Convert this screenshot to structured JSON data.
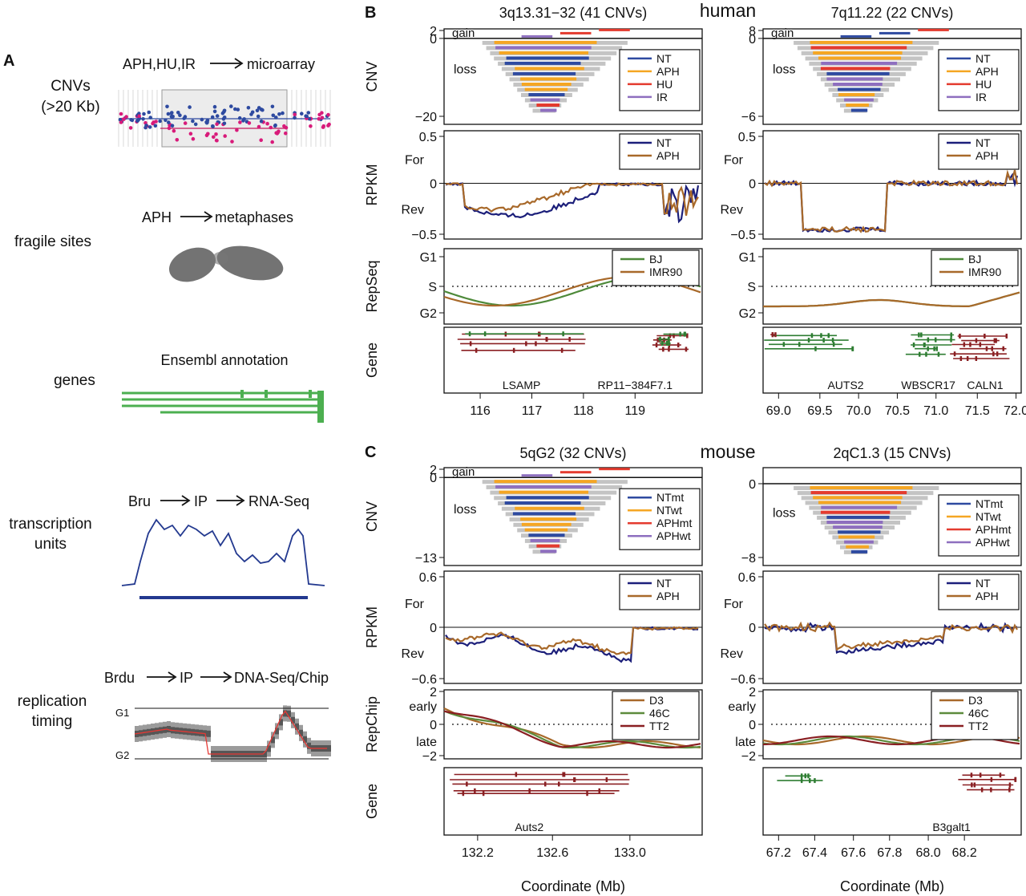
{
  "panel_a": {
    "letter": "A",
    "rows": [
      {
        "label_lines": [
          "CNVs",
          "(>20 Kb)"
        ],
        "method": [
          "APH,HU,IR",
          "microarray"
        ]
      },
      {
        "label_lines": [
          "fragile sites"
        ],
        "method": [
          "APH",
          "metaphases"
        ]
      },
      {
        "label_lines": [
          "genes"
        ],
        "method": [
          "Ensembl annotation"
        ]
      },
      {
        "label_lines": [
          "transcription",
          "units"
        ],
        "method": [
          "Bru",
          "IP",
          "RNA-Seq"
        ]
      },
      {
        "label_lines": [
          "replication",
          "timing"
        ],
        "method": [
          "Brdu",
          "IP",
          "DNA-Seq/Chip"
        ],
        "axis": [
          "G1",
          "G2"
        ]
      }
    ]
  },
  "panel_b": {
    "letter": "B",
    "organism": "human"
  },
  "panel_c": {
    "letter": "C",
    "organism": "mouse"
  },
  "xlabel": "Coordinate (Mb)",
  "colors": {
    "NT": "#2e4aa0",
    "APH": "#f5a623",
    "HU": "#e43b2f",
    "IR": "#8e6fbf",
    "NT_rpkm": "#1c1f7a",
    "APH_rpkm": "#a8692a",
    "BJ": "#4e8a3a",
    "IMR90": "#a8692a",
    "D3": "#a8692a",
    "46C": "#5d8b3c",
    "TT2": "#8a1f22",
    "gene_red": "#8a1f22",
    "gene_green": "#2e7d32",
    "cnv_gray": "#c4c4c4"
  },
  "chart_data": [
    {
      "type": "bar",
      "id": "B-left",
      "title": "3q13.31−32 (41 CNVs)",
      "x_ticks": [
        "116",
        "117",
        "118",
        "119"
      ],
      "cnv": {
        "ylabel": "CNV",
        "ticks": [
          "2",
          "0",
          "−20"
        ],
        "gain_label": "gain",
        "loss_label": "loss",
        "legend": [
          "NT",
          "APH",
          "HU",
          "IR"
        ]
      },
      "rpkm": {
        "ylabel": "RPKM",
        "ticks": [
          "0.5",
          "0",
          "−0.5"
        ],
        "strand_labels": [
          "For",
          "Rev"
        ],
        "legend": [
          "NT",
          "APH"
        ]
      },
      "rep": {
        "ylabel": "RepSeq",
        "ticks": [
          "G1",
          "S",
          "G2"
        ],
        "legend": [
          "BJ",
          "IMR90"
        ]
      },
      "gene": {
        "ylabel": "Gene",
        "names": [
          "LSAMP",
          "RP11−384F7.1"
        ]
      }
    },
    {
      "type": "bar",
      "id": "B-right",
      "title": "7q11.22 (22 CNVs)",
      "x_ticks": [
        "69.0",
        "69.5",
        "70.0",
        "70.5",
        "71.0",
        "71.5",
        "72.0"
      ],
      "cnv": {
        "ticks": [
          "8",
          "0",
          "−6"
        ],
        "gain_label": "gain",
        "loss_label": "loss",
        "legend": [
          "NT",
          "APH",
          "HU",
          "IR"
        ]
      },
      "rpkm": {
        "ticks": [
          "0.5",
          "0",
          "−0.5"
        ],
        "strand_labels": [
          "For",
          "Rev"
        ],
        "legend": [
          "NT",
          "APH"
        ]
      },
      "rep": {
        "ticks": [
          "G1",
          "S",
          "G2"
        ],
        "legend": [
          "BJ",
          "IMR90"
        ]
      },
      "gene": {
        "names": [
          "AUTS2",
          "WBSCR17",
          "CALN1"
        ]
      }
    },
    {
      "type": "bar",
      "id": "C-left",
      "title": "5qG2 (32 CNVs)",
      "x_ticks": [
        "132.2",
        "132.6",
        "133.0"
      ],
      "cnv": {
        "ylabel": "CNV",
        "ticks": [
          "2",
          "0",
          "−13"
        ],
        "gain_label": "gain",
        "loss_label": "loss",
        "legend": [
          "NTmt",
          "NTwt",
          "APHmt",
          "APHwt"
        ]
      },
      "rpkm": {
        "ylabel": "RPKM",
        "ticks": [
          "0.6",
          "0",
          "−0.6"
        ],
        "strand_labels": [
          "For",
          "Rev"
        ],
        "legend": [
          "NT",
          "APH"
        ]
      },
      "rep": {
        "ylabel": "RepChip",
        "ticks": [
          "2",
          "early",
          "0",
          "late",
          "−2"
        ],
        "legend": [
          "D3",
          "46C",
          "TT2"
        ]
      },
      "gene": {
        "ylabel": "Gene",
        "names": [
          "Auts2"
        ]
      }
    },
    {
      "type": "bar",
      "id": "C-right",
      "title": "2qC1.3 (15 CNVs)",
      "x_ticks": [
        "67.2",
        "67.4",
        "67.6",
        "67.8",
        "68.0",
        "68.2"
      ],
      "cnv": {
        "ticks": [
          "0",
          "−8"
        ],
        "loss_label": "loss",
        "legend": [
          "NTmt",
          "NTwt",
          "APHmt",
          "APHwt"
        ]
      },
      "rpkm": {
        "ticks": [
          "0.6",
          "0",
          "−0.6"
        ],
        "strand_labels": [
          "For",
          "Rev"
        ],
        "legend": [
          "NT",
          "APH"
        ]
      },
      "rep": {
        "ticks": [
          "2",
          "early",
          "0",
          "late",
          "−2"
        ],
        "legend": [
          "D3",
          "46C",
          "TT2"
        ]
      },
      "gene": {
        "names": [
          "B3galt1"
        ]
      }
    }
  ]
}
